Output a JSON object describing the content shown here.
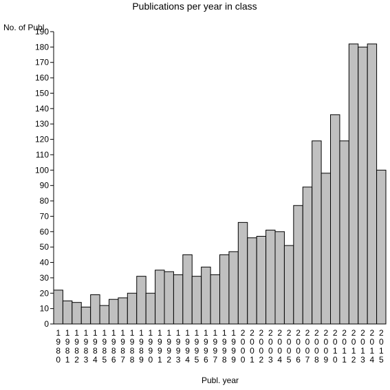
{
  "chart_data": {
    "type": "bar",
    "title": "Publications per year in class",
    "ylabel": "No. of Publ.",
    "xlabel": "Publ. year",
    "ylim": [
      0,
      190
    ],
    "ytick_step": 10,
    "grid": false,
    "bar_color": "#c0c0c0",
    "categories": [
      "1980",
      "1981",
      "1982",
      "1983",
      "1984",
      "1985",
      "1986",
      "1987",
      "1988",
      "1989",
      "1990",
      "1991",
      "1992",
      "1993",
      "1994",
      "1995",
      "1996",
      "1997",
      "1998",
      "1999",
      "2000",
      "2001",
      "2002",
      "2003",
      "2004",
      "2005",
      "2006",
      "2007",
      "2008",
      "2009",
      "2010",
      "2011",
      "2012",
      "2013",
      "2014",
      "2015"
    ],
    "values": [
      22,
      15,
      14,
      11,
      19,
      12,
      16,
      17,
      20,
      31,
      20,
      35,
      34,
      32,
      45,
      31,
      37,
      32,
      45,
      47,
      66,
      56,
      57,
      61,
      60,
      51,
      77,
      89,
      119,
      98,
      136,
      119,
      182,
      180,
      182,
      100
    ]
  }
}
